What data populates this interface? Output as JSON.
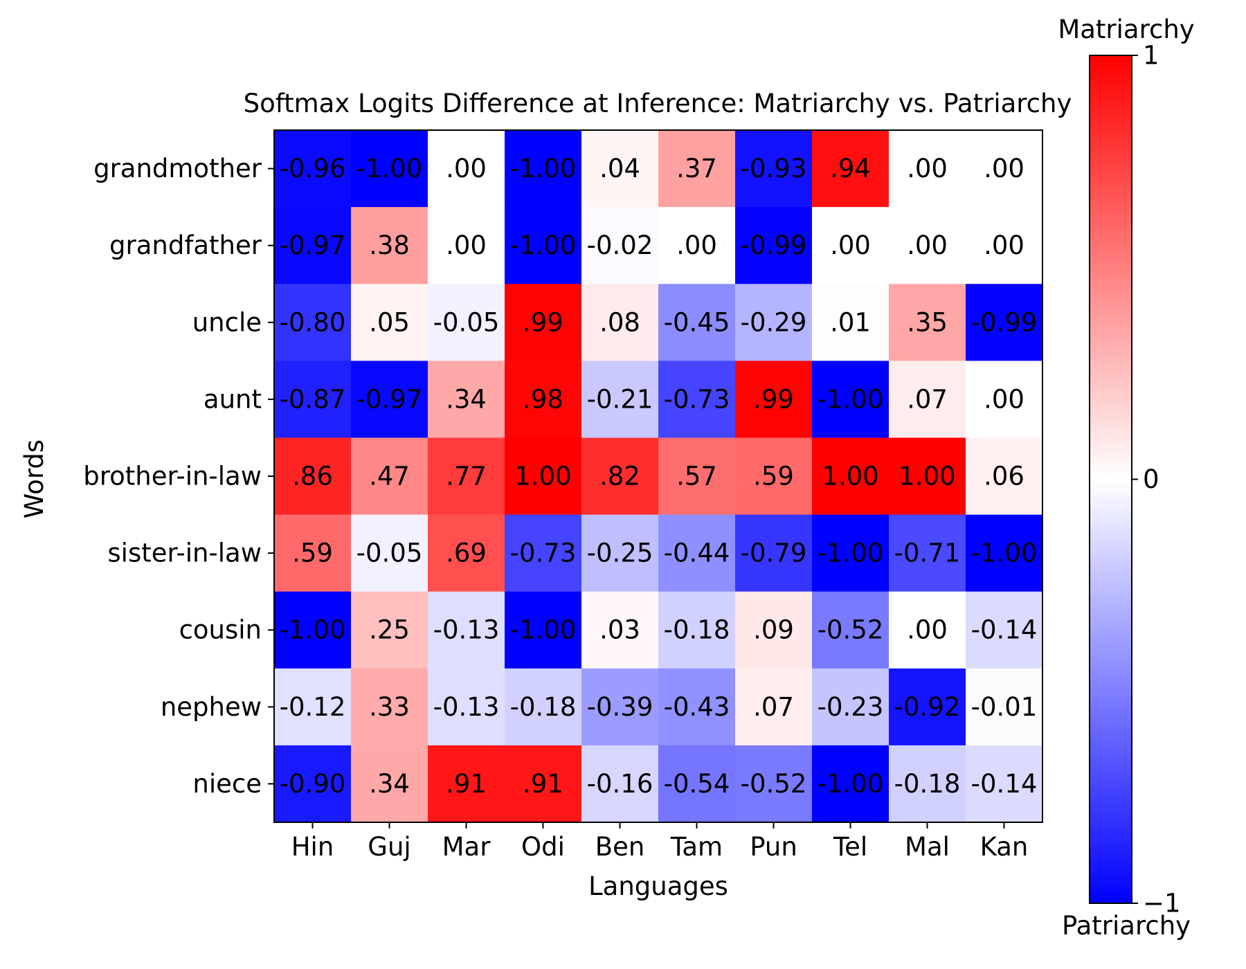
{
  "chart_data": {
    "type": "heatmap",
    "title": "Softmax Logits Difference at Inference: Matriarchy vs. Patriarchy",
    "xlabel": "Languages",
    "ylabel": "Words",
    "x_categories": [
      "Hin",
      "Guj",
      "Mar",
      "Odi",
      "Ben",
      "Tam",
      "Pun",
      "Tel",
      "Mal",
      "Kan"
    ],
    "y_categories": [
      "grandmother",
      "grandfather",
      "uncle",
      "aunt",
      "brother-in-law",
      "sister-in-law",
      "cousin",
      "nephew",
      "niece"
    ],
    "values": [
      [
        -0.96,
        -1.0,
        0.0,
        -1.0,
        0.04,
        0.37,
        -0.93,
        0.94,
        0.0,
        0.0
      ],
      [
        -0.97,
        0.38,
        0.0,
        -1.0,
        -0.02,
        0.0,
        -0.99,
        0.0,
        0.0,
        0.0
      ],
      [
        -0.8,
        0.05,
        -0.05,
        0.99,
        0.08,
        -0.45,
        -0.29,
        0.01,
        0.35,
        -0.99
      ],
      [
        -0.87,
        -0.97,
        0.34,
        0.98,
        -0.21,
        -0.73,
        0.99,
        -1.0,
        0.07,
        0.0
      ],
      [
        0.86,
        0.47,
        0.77,
        1.0,
        0.82,
        0.57,
        0.59,
        1.0,
        1.0,
        0.06
      ],
      [
        0.59,
        -0.05,
        0.69,
        -0.73,
        -0.25,
        -0.44,
        -0.79,
        -1.0,
        -0.71,
        -1.0
      ],
      [
        -1.0,
        0.25,
        -0.13,
        -1.0,
        0.03,
        -0.18,
        0.09,
        -0.52,
        0.0,
        -0.14
      ],
      [
        -0.12,
        0.33,
        -0.13,
        -0.18,
        -0.39,
        -0.43,
        0.07,
        -0.23,
        -0.92,
        -0.01
      ],
      [
        -0.9,
        0.34,
        0.91,
        0.91,
        -0.16,
        -0.54,
        -0.52,
        -1.0,
        -0.18,
        -0.14
      ]
    ],
    "cell_labels": [
      [
        "-0.96",
        "-1.00",
        ".00",
        "-1.00",
        ".04",
        ".37",
        "-0.93",
        ".94",
        ".00",
        ".00"
      ],
      [
        "-0.97",
        ".38",
        ".00",
        "-1.00",
        "-0.02",
        ".00",
        "-0.99",
        ".00",
        ".00",
        ".00"
      ],
      [
        "-0.80",
        ".05",
        "-0.05",
        ".99",
        ".08",
        "-0.45",
        "-0.29",
        ".01",
        ".35",
        "-0.99"
      ],
      [
        "-0.87",
        "-0.97",
        ".34",
        ".98",
        "-0.21",
        "-0.73",
        ".99",
        "-1.00",
        ".07",
        ".00"
      ],
      [
        ".86",
        ".47",
        ".77",
        "1.00",
        ".82",
        ".57",
        ".59",
        "1.00",
        "1.00",
        ".06"
      ],
      [
        ".59",
        "-0.05",
        ".69",
        "-0.73",
        "-0.25",
        "-0.44",
        "-0.79",
        "-1.00",
        "-0.71",
        "-1.00"
      ],
      [
        "-1.00",
        ".25",
        "-0.13",
        "-1.00",
        ".03",
        "-0.18",
        ".09",
        "-0.52",
        ".00",
        "-0.14"
      ],
      [
        "-0.12",
        ".33",
        "-0.13",
        "-0.18",
        "-0.39",
        "-0.43",
        ".07",
        "-0.23",
        "-0.92",
        "-0.01"
      ],
      [
        "-0.90",
        ".34",
        ".91",
        ".91",
        "-0.16",
        "-0.54",
        "-0.52",
        "-1.00",
        "-0.18",
        "-0.14"
      ]
    ],
    "colormap": "bwr",
    "colors": {
      "low": "#0000ff",
      "mid": "#ffffff",
      "high": "#ff0000"
    },
    "vmin": -1,
    "vmax": 1,
    "colorbar": {
      "ticks": [
        -1,
        0,
        1
      ],
      "tick_labels": [
        "−1",
        "0",
        "1"
      ],
      "top_label": "Matriarchy",
      "bottom_label": "Patriarchy"
    },
    "grid": false
  }
}
